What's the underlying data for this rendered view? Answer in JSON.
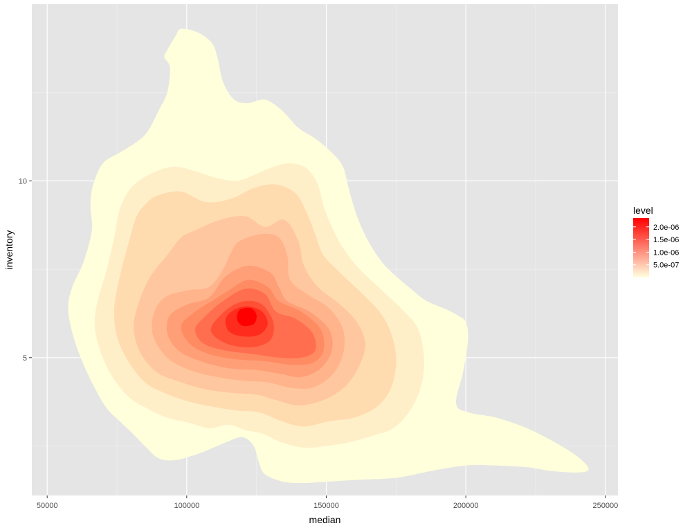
{
  "chart_data": {
    "type": "density2d_filled",
    "xlabel": "median",
    "ylabel": "inventory",
    "xlim": [
      44500,
      254500
    ],
    "ylim": [
      1.1,
      15.0
    ],
    "x_ticks": [
      {
        "value": 50000,
        "label": "50000"
      },
      {
        "value": 100000,
        "label": "100000"
      },
      {
        "value": 150000,
        "label": "150000"
      },
      {
        "value": 200000,
        "label": "200000"
      },
      {
        "value": 250000,
        "label": "250000"
      }
    ],
    "x_minor_ticks": [
      75000,
      125000,
      175000,
      225000
    ],
    "y_ticks": [
      {
        "value": 5,
        "label": "5"
      },
      {
        "value": 10,
        "label": "10"
      }
    ],
    "y_minor_ticks": [
      2.5,
      7.5,
      12.5
    ],
    "grid": true,
    "legend": {
      "title": "level",
      "position": "right",
      "range": [
        0,
        2.35e-06
      ],
      "breaks": [
        {
          "value": 5e-07,
          "label": "5.0e-07"
        },
        {
          "value": 1e-06,
          "label": "1.0e-06"
        },
        {
          "value": 1.5e-06,
          "label": "1.5e-06"
        },
        {
          "value": 2e-06,
          "label": "2.0e-06"
        }
      ],
      "low_color": "#ffffe0",
      "high_color": "#ff0000"
    },
    "levels": [
      {
        "level": 1e-07,
        "color": "#ffffdc",
        "polygon": [
          [
            98000,
            14.3
          ],
          [
            104000,
            14.2
          ],
          [
            109000,
            13.9
          ],
          [
            111000,
            13.5
          ],
          [
            113000,
            12.8
          ],
          [
            117000,
            12.3
          ],
          [
            122000,
            12.2
          ],
          [
            128000,
            12.3
          ],
          [
            134000,
            12.0
          ],
          [
            140000,
            11.5
          ],
          [
            146000,
            11.2
          ],
          [
            152000,
            10.8
          ],
          [
            156000,
            10.4
          ],
          [
            158000,
            9.8
          ],
          [
            161000,
            9.0
          ],
          [
            165000,
            8.3
          ],
          [
            170000,
            7.7
          ],
          [
            175000,
            7.3
          ],
          [
            181000,
            6.9
          ],
          [
            186000,
            6.6
          ],
          [
            192000,
            6.4
          ],
          [
            197000,
            6.2
          ],
          [
            200000,
            6.0
          ],
          [
            200800,
            5.5
          ],
          [
            199000,
            4.6
          ],
          [
            196500,
            3.7
          ],
          [
            201000,
            3.45
          ],
          [
            211000,
            3.3
          ],
          [
            222000,
            3.0
          ],
          [
            232000,
            2.6
          ],
          [
            240000,
            2.2
          ],
          [
            244000,
            1.85
          ],
          [
            240000,
            1.75
          ],
          [
            230000,
            1.8
          ],
          [
            222000,
            1.9
          ],
          [
            210000,
            1.95
          ],
          [
            200000,
            1.95
          ],
          [
            188000,
            1.8
          ],
          [
            175000,
            1.6
          ],
          [
            163000,
            1.55
          ],
          [
            152000,
            1.5
          ],
          [
            141000,
            1.45
          ],
          [
            134000,
            1.5
          ],
          [
            128000,
            1.7
          ],
          [
            126000,
            2.0
          ],
          [
            124000,
            2.5
          ],
          [
            120000,
            2.75
          ],
          [
            114000,
            2.6
          ],
          [
            108000,
            2.4
          ],
          [
            103000,
            2.25
          ],
          [
            96000,
            2.1
          ],
          [
            90000,
            2.15
          ],
          [
            85000,
            2.5
          ],
          [
            80000,
            2.9
          ],
          [
            76000,
            3.2
          ],
          [
            71000,
            3.6
          ],
          [
            66000,
            4.3
          ],
          [
            62000,
            5.0
          ],
          [
            59000,
            5.7
          ],
          [
            57500,
            6.4
          ],
          [
            59000,
            7.0
          ],
          [
            63000,
            7.7
          ],
          [
            66000,
            8.6
          ],
          [
            65500,
            9.3
          ],
          [
            66500,
            9.9
          ],
          [
            70000,
            10.5
          ],
          [
            76000,
            10.8
          ],
          [
            82000,
            11.1
          ],
          [
            86000,
            11.4
          ],
          [
            90000,
            12.0
          ],
          [
            93000,
            12.5
          ],
          [
            94000,
            13.2
          ],
          [
            92000,
            13.5
          ],
          [
            93000,
            13.7
          ],
          [
            96000,
            14.1
          ]
        ]
      },
      {
        "level": 2.5e-07,
        "color": "#ffefc9",
        "polygon": [
          [
            95000,
            10.4
          ],
          [
            102000,
            10.3
          ],
          [
            110000,
            10.1
          ],
          [
            118000,
            10.0
          ],
          [
            125000,
            10.2
          ],
          [
            131000,
            10.4
          ],
          [
            137000,
            10.5
          ],
          [
            143000,
            10.35
          ],
          [
            147000,
            9.9
          ],
          [
            149000,
            9.3
          ],
          [
            152000,
            8.7
          ],
          [
            156000,
            8.1
          ],
          [
            162000,
            7.5
          ],
          [
            170000,
            6.9
          ],
          [
            178000,
            6.3
          ],
          [
            183000,
            5.8
          ],
          [
            185000,
            5.0
          ],
          [
            184000,
            4.2
          ],
          [
            180000,
            3.5
          ],
          [
            174000,
            3.0
          ],
          [
            167000,
            2.8
          ],
          [
            158000,
            2.6
          ],
          [
            150000,
            2.5
          ],
          [
            142000,
            2.45
          ],
          [
            134000,
            2.6
          ],
          [
            127000,
            2.85
          ],
          [
            121000,
            2.95
          ],
          [
            115000,
            3.1
          ],
          [
            108000,
            3.0
          ],
          [
            101000,
            3.15
          ],
          [
            93000,
            3.3
          ],
          [
            86000,
            3.55
          ],
          [
            79000,
            3.9
          ],
          [
            73000,
            4.5
          ],
          [
            69000,
            5.2
          ],
          [
            67000,
            5.9
          ],
          [
            68000,
            6.6
          ],
          [
            71000,
            7.4
          ],
          [
            74000,
            8.4
          ],
          [
            76000,
            9.2
          ],
          [
            80000,
            9.8
          ],
          [
            87000,
            10.2
          ]
        ]
      },
      {
        "level": 4e-07,
        "color": "#ffdcb0",
        "polygon": [
          [
            90000,
            9.6
          ],
          [
            98000,
            9.7
          ],
          [
            107000,
            9.4
          ],
          [
            116000,
            9.5
          ],
          [
            124000,
            9.8
          ],
          [
            132000,
            9.9
          ],
          [
            139000,
            9.65
          ],
          [
            143000,
            9.1
          ],
          [
            146000,
            8.5
          ],
          [
            149000,
            7.9
          ],
          [
            155000,
            7.4
          ],
          [
            163000,
            6.8
          ],
          [
            170000,
            6.2
          ],
          [
            174000,
            5.5
          ],
          [
            175000,
            4.8
          ],
          [
            173000,
            4.1
          ],
          [
            168000,
            3.6
          ],
          [
            160000,
            3.3
          ],
          [
            151000,
            3.2
          ],
          [
            142000,
            3.05
          ],
          [
            134000,
            3.2
          ],
          [
            126000,
            3.45
          ],
          [
            118000,
            3.5
          ],
          [
            110000,
            3.6
          ],
          [
            101000,
            3.75
          ],
          [
            92000,
            4.0
          ],
          [
            85000,
            4.3
          ],
          [
            79000,
            4.9
          ],
          [
            75000,
            5.6
          ],
          [
            74000,
            6.4
          ],
          [
            76000,
            7.3
          ],
          [
            79000,
            8.2
          ],
          [
            82000,
            9.0
          ],
          [
            86000,
            9.4
          ]
        ]
      },
      {
        "level": 6e-07,
        "color": "#ffc79f",
        "polygon": [
          [
            103000,
            8.6
          ],
          [
            112000,
            8.9
          ],
          [
            121000,
            9.0
          ],
          [
            128000,
            8.7
          ],
          [
            135000,
            8.9
          ],
          [
            140000,
            8.3
          ],
          [
            142000,
            7.6
          ],
          [
            147000,
            7.0
          ],
          [
            155000,
            6.5
          ],
          [
            161000,
            6.0
          ],
          [
            164000,
            5.4
          ],
          [
            162000,
            4.8
          ],
          [
            157000,
            4.2
          ],
          [
            149000,
            3.8
          ],
          [
            140000,
            3.65
          ],
          [
            132000,
            3.8
          ],
          [
            125000,
            3.95
          ],
          [
            116000,
            4.0
          ],
          [
            107000,
            4.1
          ],
          [
            98000,
            4.3
          ],
          [
            89000,
            4.6
          ],
          [
            83000,
            5.2
          ],
          [
            81000,
            5.9
          ],
          [
            83000,
            6.6
          ],
          [
            87000,
            7.3
          ],
          [
            93000,
            7.9
          ],
          [
            98000,
            8.4
          ]
        ]
      },
      {
        "level": 8.5e-07,
        "color": "#ffb48c",
        "polygon": [
          [
            119000,
            8.3
          ],
          [
            127000,
            8.5
          ],
          [
            133000,
            8.4
          ],
          [
            136000,
            7.9
          ],
          [
            137000,
            7.2
          ],
          [
            143000,
            6.8
          ],
          [
            151000,
            6.4
          ],
          [
            156000,
            5.8
          ],
          [
            156000,
            5.1
          ],
          [
            152000,
            4.5
          ],
          [
            145000,
            4.15
          ],
          [
            137000,
            4.15
          ],
          [
            129000,
            4.3
          ],
          [
            120000,
            4.35
          ],
          [
            111000,
            4.45
          ],
          [
            101000,
            4.65
          ],
          [
            93000,
            5.0
          ],
          [
            88000,
            5.6
          ],
          [
            88000,
            6.2
          ],
          [
            92000,
            6.7
          ],
          [
            100000,
            6.9
          ],
          [
            108000,
            7.0
          ],
          [
            113000,
            7.5
          ],
          [
            116000,
            8.0
          ]
        ]
      },
      {
        "level": 1.1e-06,
        "color": "#ff9f77",
        "polygon": [
          [
            114000,
            7.3
          ],
          [
            122000,
            7.6
          ],
          [
            130000,
            7.4
          ],
          [
            133000,
            7.0
          ],
          [
            136000,
            6.6
          ],
          [
            144000,
            6.3
          ],
          [
            151000,
            5.8
          ],
          [
            152000,
            5.2
          ],
          [
            148000,
            4.7
          ],
          [
            141000,
            4.45
          ],
          [
            133000,
            4.55
          ],
          [
            125000,
            4.65
          ],
          [
            115000,
            4.7
          ],
          [
            105000,
            4.9
          ],
          [
            97000,
            5.2
          ],
          [
            93000,
            5.7
          ],
          [
            94000,
            6.2
          ],
          [
            100000,
            6.5
          ],
          [
            108000,
            6.7
          ]
        ]
      },
      {
        "level": 1.35e-06,
        "color": "#ff8b63",
        "polygon": [
          [
            115000,
            6.9
          ],
          [
            122000,
            7.2
          ],
          [
            129000,
            7.0
          ],
          [
            133000,
            6.6
          ],
          [
            141000,
            6.3
          ],
          [
            148000,
            5.8
          ],
          [
            149000,
            5.2
          ],
          [
            145000,
            4.85
          ],
          [
            137000,
            4.8
          ],
          [
            128000,
            4.9
          ],
          [
            118000,
            4.95
          ],
          [
            108000,
            5.1
          ],
          [
            101000,
            5.4
          ],
          [
            98000,
            5.9
          ],
          [
            103000,
            6.3
          ],
          [
            109000,
            6.6
          ]
        ]
      },
      {
        "level": 1.6e-06,
        "color": "#ff6e4e",
        "polygon": [
          [
            113000,
            6.6
          ],
          [
            121000,
            6.95
          ],
          [
            128000,
            6.8
          ],
          [
            132000,
            6.3
          ],
          [
            139000,
            6.1
          ],
          [
            145000,
            5.7
          ],
          [
            146000,
            5.2
          ],
          [
            141000,
            5.0
          ],
          [
            133000,
            5.0
          ],
          [
            124000,
            5.1
          ],
          [
            114000,
            5.2
          ],
          [
            106000,
            5.4
          ],
          [
            103000,
            5.8
          ],
          [
            107000,
            6.2
          ]
        ]
      },
      {
        "level": 1.85e-06,
        "color": "#ff5036",
        "polygon": [
          [
            115000,
            6.4
          ],
          [
            121000,
            6.6
          ],
          [
            127000,
            6.5
          ],
          [
            131000,
            6.0
          ],
          [
            130000,
            5.5
          ],
          [
            124000,
            5.3
          ],
          [
            116000,
            5.35
          ],
          [
            110000,
            5.6
          ],
          [
            109000,
            5.9
          ]
        ]
      },
      {
        "level": 2.1e-06,
        "color": "#ff2b1c",
        "polygon": [
          [
            117000,
            6.35
          ],
          [
            122000,
            6.45
          ],
          [
            127000,
            6.3
          ],
          [
            129000,
            5.95
          ],
          [
            126000,
            5.65
          ],
          [
            120000,
            5.6
          ],
          [
            115000,
            5.75
          ],
          [
            114000,
            6.1
          ]
        ]
      },
      {
        "level": 2.3e-06,
        "color": "#ff0000",
        "polygon": [
          [
            119000,
            6.35
          ],
          [
            123000,
            6.4
          ],
          [
            125000,
            6.2
          ],
          [
            124000,
            5.95
          ],
          [
            120000,
            5.9
          ],
          [
            118000,
            6.1
          ]
        ]
      }
    ]
  }
}
